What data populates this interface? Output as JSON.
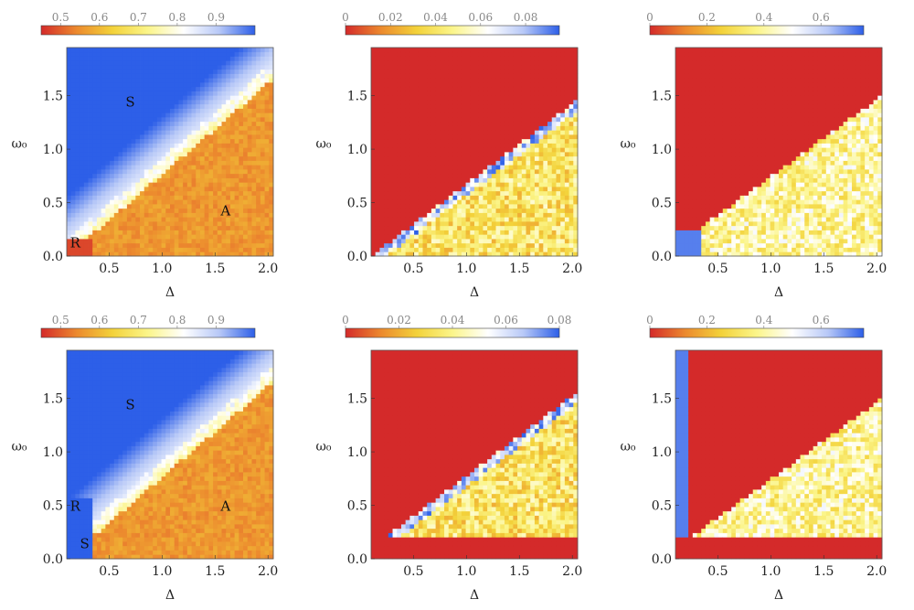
{
  "colormap": [
    "#d42a2a",
    "#ec8a2e",
    "#f3d23a",
    "#fbf58a",
    "#ffffff",
    "#b7c8f7",
    "#2d5fe8"
  ],
  "chart_data": [
    {
      "type": "heatmap",
      "row": 1,
      "col": 1,
      "xlabel": "Δ",
      "ylabel": "ω₀",
      "xlim": [
        0.1,
        2.05
      ],
      "ylim": [
        0.0,
        1.95
      ],
      "xticks": [
        "0.5",
        "1.0",
        "1.5",
        "2.0"
      ],
      "yticks": [
        "0.0",
        "0.5",
        "1.0",
        "1.5"
      ],
      "colorbar": {
        "range": [
          0.45,
          1.0
        ],
        "ticks": [
          "0.5",
          "0.6",
          "0.7",
          "0.8",
          "0.9"
        ]
      },
      "regions": [
        {
          "label": "S",
          "x": 0.7,
          "y": 1.4
        },
        {
          "label": "A",
          "x": 1.6,
          "y": 0.38
        },
        {
          "label": "R",
          "x": 0.18,
          "y": 0.08
        }
      ]
    },
    {
      "type": "heatmap",
      "row": 1,
      "col": 2,
      "xlabel": "Δ",
      "ylabel": "ω₀",
      "xlim": [
        0.1,
        2.05
      ],
      "ylim": [
        0.0,
        1.95
      ],
      "xticks": [
        "0.5",
        "1.0",
        "1.5",
        "2.0"
      ],
      "yticks": [
        "0.0",
        "0.5",
        "1.0",
        "1.5"
      ],
      "colorbar": {
        "range": [
          0.0,
          0.095
        ],
        "ticks": [
          "0",
          "0.02",
          "0.04",
          "0.06",
          "0.08"
        ]
      },
      "regions": []
    },
    {
      "type": "heatmap",
      "row": 1,
      "col": 3,
      "xlabel": "Δ",
      "ylabel": "ω₀",
      "xlim": [
        0.1,
        2.05
      ],
      "ylim": [
        0.0,
        1.95
      ],
      "xticks": [
        "0.5",
        "1.0",
        "1.5",
        "2.0"
      ],
      "yticks": [
        "0.0",
        "0.5",
        "1.0",
        "1.5"
      ],
      "colorbar": {
        "range": [
          0.0,
          0.75
        ],
        "ticks": [
          "0",
          "0.2",
          "0.4",
          "0.6"
        ]
      },
      "regions": []
    },
    {
      "type": "heatmap",
      "row": 2,
      "col": 1,
      "xlabel": "Δ",
      "ylabel": "ω₀",
      "xlim": [
        0.1,
        2.05
      ],
      "ylim": [
        0.0,
        1.95
      ],
      "xticks": [
        "0.5",
        "1.0",
        "1.5",
        "2.0"
      ],
      "yticks": [
        "0.0",
        "0.5",
        "1.0",
        "1.5"
      ],
      "colorbar": {
        "range": [
          0.45,
          1.0
        ],
        "ticks": [
          "0.5",
          "0.6",
          "0.7",
          "0.8",
          "0.9"
        ]
      },
      "regions": [
        {
          "label": "S",
          "x": 0.7,
          "y": 1.4
        },
        {
          "label": "A",
          "x": 1.6,
          "y": 0.45
        },
        {
          "label": "R",
          "x": 0.18,
          "y": 0.45
        },
        {
          "label": "S",
          "x": 0.27,
          "y": 0.1
        }
      ]
    },
    {
      "type": "heatmap",
      "row": 2,
      "col": 2,
      "xlabel": "Δ",
      "ylabel": "ω₀",
      "xlim": [
        0.1,
        2.05
      ],
      "ylim": [
        0.0,
        1.95
      ],
      "xticks": [
        "0.5",
        "1.0",
        "1.5",
        "2.0"
      ],
      "yticks": [
        "0.0",
        "0.5",
        "1.0",
        "1.5"
      ],
      "colorbar": {
        "range": [
          0.0,
          0.08
        ],
        "ticks": [
          "0",
          "0.02",
          "0.04",
          "0.06",
          "0.08"
        ]
      },
      "regions": []
    },
    {
      "type": "heatmap",
      "row": 2,
      "col": 3,
      "xlabel": "Δ",
      "ylabel": "ω₀",
      "xlim": [
        0.1,
        2.05
      ],
      "ylim": [
        0.0,
        1.95
      ],
      "xticks": [
        "0.5",
        "1.0",
        "1.5",
        "2.0"
      ],
      "yticks": [
        "0.0",
        "0.5",
        "1.0",
        "1.5"
      ],
      "colorbar": {
        "range": [
          0.0,
          0.75
        ],
        "ticks": [
          "0",
          "0.2",
          "0.4",
          "0.6"
        ]
      },
      "regions": []
    }
  ]
}
